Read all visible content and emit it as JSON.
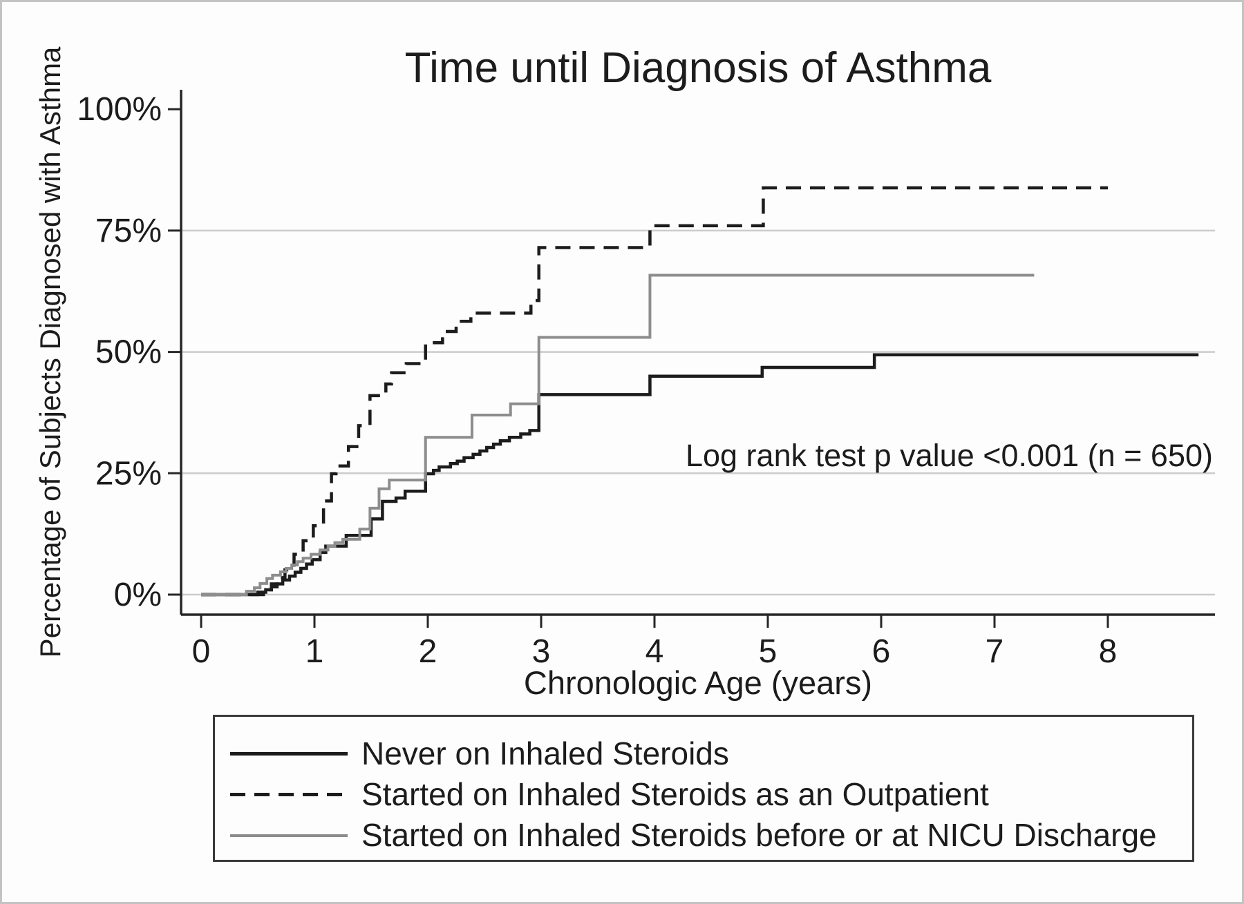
{
  "colors": {
    "ink": "#1c1c1c",
    "gray_line": "#8d8d8d",
    "gridline": "#cccccc",
    "axis": "#262626",
    "figure_border": "#c3c3c3",
    "legend_border": "#3a3a3a",
    "background": "#fdfdfd"
  },
  "chart_data": {
    "type": "line",
    "subtype": "kaplan-meier-step-curves",
    "title": "Time until Diagnosis of Asthma",
    "xlabel": "Chronologic Age (years)",
    "ylabel": "Percentage of Subjects Diagnosed with Asthma",
    "annotation": "Log rank test p value <0.001 (n = 650)",
    "xlim": [
      0,
      8.95
    ],
    "ylim": [
      0,
      104
    ],
    "x_ticks": [
      0,
      1,
      2,
      3,
      4,
      5,
      6,
      7,
      8
    ],
    "y_ticks": [
      {
        "value": 0,
        "label": "0%"
      },
      {
        "value": 25,
        "label": "25%"
      },
      {
        "value": 50,
        "label": "50%"
      },
      {
        "value": 75,
        "label": "75%"
      },
      {
        "value": 100,
        "label": "100%"
      }
    ],
    "y_gridlines": [
      0,
      25,
      50,
      75
    ],
    "grid": "horizontal-only",
    "legend_position": "below-plot-boxed",
    "series": [
      {
        "id": "never-on-inhaled-steroids",
        "name": "Never on Inhaled Steroids",
        "line": "solid",
        "color": "black",
        "end_age": 8.8,
        "steps": [
          [
            0,
            0
          ],
          [
            0.5,
            0.5
          ],
          [
            0.57,
            1
          ],
          [
            0.62,
            1.6
          ],
          [
            0.67,
            2.2
          ],
          [
            0.72,
            3
          ],
          [
            0.78,
            3.8
          ],
          [
            0.83,
            4.6
          ],
          [
            0.88,
            5.4
          ],
          [
            0.93,
            6.3
          ],
          [
            0.98,
            7.2
          ],
          [
            1.05,
            8.7
          ],
          [
            1.1,
            10
          ],
          [
            1.28,
            12.2
          ],
          [
            1.5,
            15.6
          ],
          [
            1.6,
            19.2
          ],
          [
            1.72,
            19.9
          ],
          [
            1.8,
            21.3
          ],
          [
            1.98,
            24.9
          ],
          [
            2.05,
            25.6
          ],
          [
            2.1,
            26.3
          ],
          [
            2.2,
            27
          ],
          [
            2.26,
            27.5
          ],
          [
            2.32,
            28.2
          ],
          [
            2.4,
            28.9
          ],
          [
            2.46,
            29.6
          ],
          [
            2.52,
            30.3
          ],
          [
            2.58,
            31
          ],
          [
            2.64,
            31.7
          ],
          [
            2.72,
            32.4
          ],
          [
            2.82,
            33.1
          ],
          [
            2.9,
            33.8
          ],
          [
            2.98,
            41.2
          ],
          [
            3.96,
            45
          ],
          [
            4.95,
            46.8
          ],
          [
            5.94,
            49.4
          ]
        ]
      },
      {
        "id": "started-steroids-outpatient",
        "name": "Started on Inhaled Steroids as an Outpatient",
        "line": "dashed",
        "color": "black",
        "end_age": 8.0,
        "steps": [
          [
            0,
            0
          ],
          [
            0.55,
            1
          ],
          [
            0.62,
            2.2
          ],
          [
            0.68,
            3.5
          ],
          [
            0.74,
            5.1
          ],
          [
            0.82,
            8.3
          ],
          [
            0.9,
            11.1
          ],
          [
            0.99,
            14.2
          ],
          [
            1.08,
            19.3
          ],
          [
            1.15,
            24.9
          ],
          [
            1.19,
            26.5
          ],
          [
            1.3,
            30.5
          ],
          [
            1.39,
            34.8
          ],
          [
            1.49,
            41
          ],
          [
            1.63,
            43.4
          ],
          [
            1.68,
            45.7
          ],
          [
            1.81,
            47.6
          ],
          [
            1.98,
            51.9
          ],
          [
            2.13,
            54.2
          ],
          [
            2.25,
            56.3
          ],
          [
            2.38,
            58
          ],
          [
            2.91,
            60.6
          ],
          [
            2.98,
            71.5
          ],
          [
            3.96,
            76
          ],
          [
            4.96,
            83.8
          ]
        ]
      },
      {
        "id": "started-steroids-nicu-discharge",
        "name": "Started on Inhaled Steroids before or at NICU Discharge",
        "line": "solid",
        "color": "gray",
        "end_age": 7.35,
        "steps": [
          [
            0,
            0
          ],
          [
            0.4,
            0.7
          ],
          [
            0.47,
            1.4
          ],
          [
            0.52,
            2.3
          ],
          [
            0.58,
            3.3
          ],
          [
            0.63,
            4
          ],
          [
            0.7,
            4.7
          ],
          [
            0.75,
            5.4
          ],
          [
            0.8,
            6.1
          ],
          [
            0.85,
            6.8
          ],
          [
            0.9,
            7.5
          ],
          [
            0.97,
            8.3
          ],
          [
            1.05,
            9.2
          ],
          [
            1.12,
            10
          ],
          [
            1.18,
            10.7
          ],
          [
            1.25,
            11.4
          ],
          [
            1.4,
            13.5
          ],
          [
            1.49,
            17.8
          ],
          [
            1.57,
            21.8
          ],
          [
            1.66,
            23.6
          ],
          [
            1.98,
            32.4
          ],
          [
            2.39,
            37
          ],
          [
            2.73,
            39.3
          ],
          [
            2.98,
            53
          ],
          [
            3.96,
            65.8
          ]
        ]
      }
    ]
  },
  "legend": {
    "items": [
      {
        "style": "solid-black"
      },
      {
        "style": "dashed-black"
      },
      {
        "style": "solid-gray"
      }
    ]
  }
}
